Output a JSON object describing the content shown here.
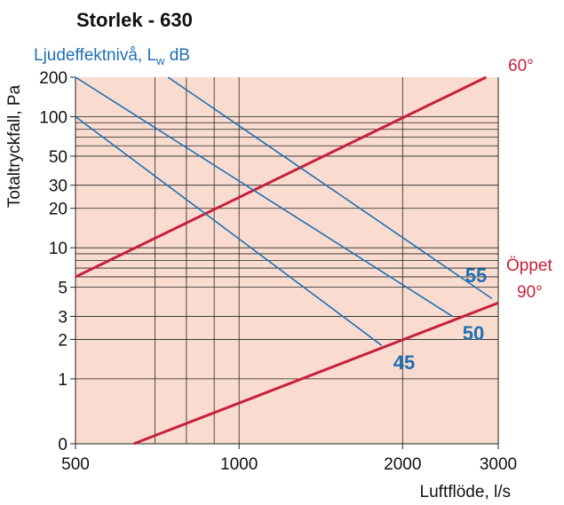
{
  "chart_data": {
    "type": "line",
    "title": "Storlek - 630",
    "subtitle": {
      "text": "Ljudeffektnivå, L",
      "sub": "w",
      "unit": " dB"
    },
    "xlabel": "Luftflöde, l/s",
    "ylabel": "Totaltryckfall, Pa",
    "xscale": "log",
    "yscale": "log",
    "xlim": [
      500,
      3000
    ],
    "ylim": [
      0.32,
      200
    ],
    "xticks": [
      500,
      1000,
      2000,
      3000
    ],
    "yticks": [
      {
        "value": 0.32,
        "label": "0"
      },
      1,
      2,
      3,
      5,
      10,
      20,
      30,
      50,
      100,
      200
    ],
    "xgrid": [
      700,
      800,
      900,
      1000,
      2000
    ],
    "ygrid": [
      1,
      2,
      3,
      5,
      6,
      7,
      8,
      9,
      10,
      20,
      30,
      50,
      60,
      70,
      80,
      90,
      100
    ],
    "background": "#f9dccf",
    "series": [
      {
        "name": "60°",
        "color": "#c8203a",
        "x": [
          500,
          2850
        ],
        "values": [
          6,
          200
        ]
      },
      {
        "name": "Öppet 90°",
        "color": "#c8203a",
        "x": [
          640,
          3000
        ],
        "values": [
          0.32,
          3.8
        ]
      },
      {
        "name": "45",
        "color": "#1f6fb5",
        "x": [
          500,
          1830
        ],
        "values": [
          100,
          1.8
        ]
      },
      {
        "name": "50",
        "color": "#1f6fb5",
        "x": [
          500,
          2470
        ],
        "values": [
          200,
          3
        ]
      },
      {
        "name": "55",
        "color": "#1f6fb5",
        "x": [
          740,
          2920
        ],
        "values": [
          200,
          4.1
        ]
      }
    ]
  }
}
